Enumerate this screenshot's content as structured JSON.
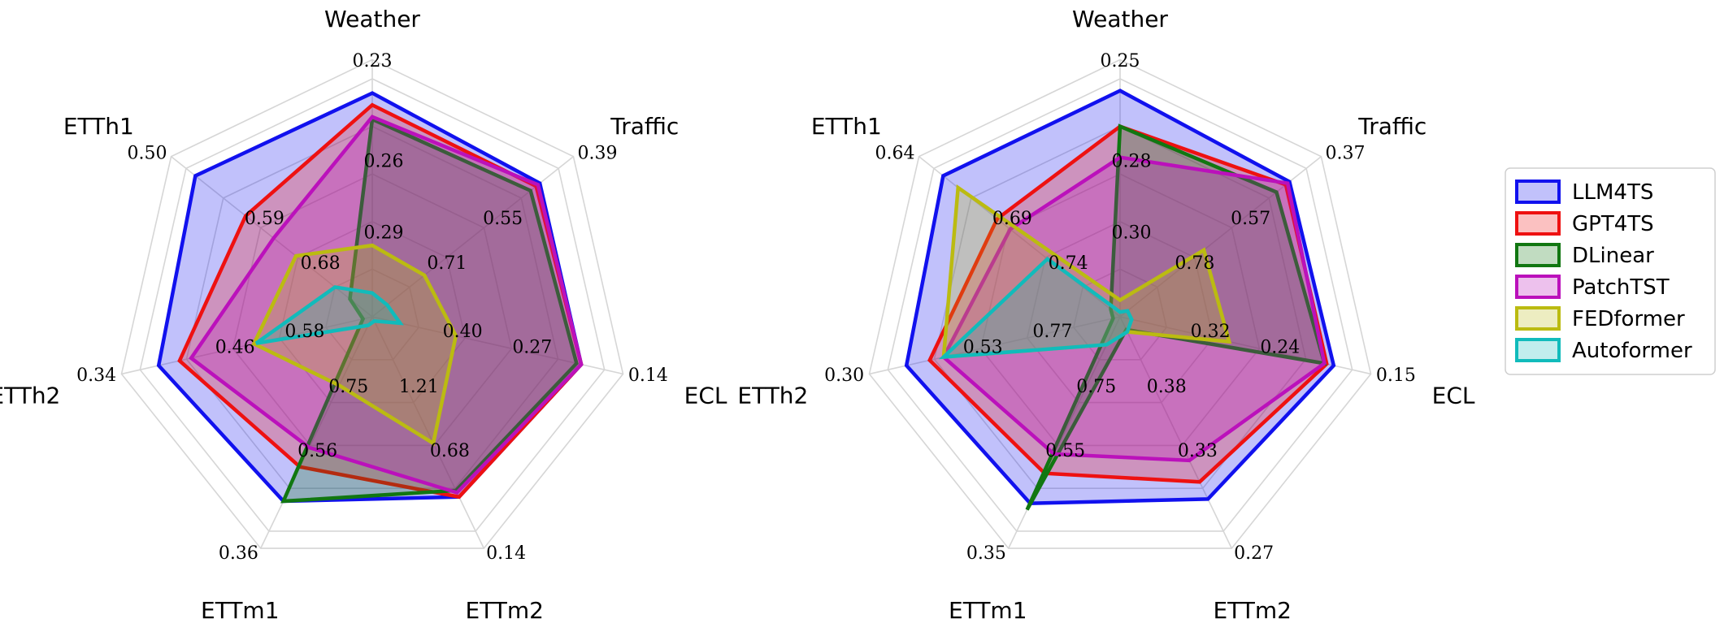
{
  "colors": {
    "LLM4TS": "#1111ee",
    "GPT4TS": "#ee1111",
    "DLinear": "#117711",
    "PatchTST": "#bb11bb",
    "FEDformer": "#bbbb11",
    "Autoformer": "#11bbbb",
    "grid": "#d6d6d6"
  },
  "legend": {
    "items": [
      "LLM4TS",
      "GPT4TS",
      "DLinear",
      "PatchTST",
      "FEDformer",
      "Autoformer"
    ]
  },
  "chart_data": [
    {
      "type": "radar",
      "axes": [
        "Weather",
        "Traffic",
        "ECL",
        "ETTm2",
        "ETTm1",
        "ETTh2",
        "ETTh1"
      ],
      "tick_labels": {
        "Weather": [
          "0.23",
          "0.26",
          "0.29"
        ],
        "Traffic": [
          "0.39",
          "0.55",
          "0.71"
        ],
        "ECL": [
          "0.14",
          "0.27",
          "0.40"
        ],
        "ETTm2": [
          "0.14",
          "0.68",
          "1.21"
        ],
        "ETTm1": [
          "0.36",
          "0.56",
          "0.75"
        ],
        "ETTh2": [
          "0.34",
          "0.46",
          "0.58"
        ],
        "ETTh1": [
          "0.50",
          "0.59",
          "0.68"
        ]
      },
      "series": [
        {
          "name": "LLM4TS",
          "values": [
            0.94,
            0.9,
            0.9,
            0.84,
            0.86,
            0.92,
            0.95
          ]
        },
        {
          "name": "GPT4TS",
          "values": [
            0.89,
            0.88,
            0.9,
            0.84,
            0.7,
            0.83,
            0.68
          ]
        },
        {
          "name": "DLinear",
          "values": [
            0.83,
            0.85,
            0.88,
            0.81,
            0.86,
            0.04,
            0.12
          ]
        },
        {
          "name": "PatchTST",
          "values": [
            0.84,
            0.89,
            0.9,
            0.82,
            0.61,
            0.78,
            0.53
          ]
        },
        {
          "name": "FEDformer",
          "values": [
            0.3,
            0.28,
            0.36,
            0.59,
            0.32,
            0.51,
            0.41
          ]
        },
        {
          "name": "Autoformer",
          "values": [
            0.1,
            0.08,
            0.12,
            0.02,
            0.04,
            0.5,
            0.2
          ]
        }
      ]
    },
    {
      "type": "radar",
      "axes": [
        "Weather",
        "Traffic",
        "ECL",
        "ETTm2",
        "ETTm1",
        "ETTh2",
        "ETTh1"
      ],
      "tick_labels": {
        "Weather": [
          "0.25",
          "0.28",
          "0.30"
        ],
        "Traffic": [
          "0.37",
          "0.57",
          "0.78"
        ],
        "ECL": [
          "0.15",
          "0.24",
          "0.32"
        ],
        "ETTm2": [
          "0.27",
          "0.33",
          "0.38"
        ],
        "ETTm1": [
          "0.35",
          "0.55",
          "0.75"
        ],
        "ETTh2": [
          "0.30",
          "0.53",
          "0.77"
        ],
        "ETTh1": [
          "0.64",
          "0.69",
          "0.74"
        ]
      },
      "series": [
        {
          "name": "LLM4TS",
          "values": [
            0.95,
            0.91,
            0.92,
            0.85,
            0.87,
            0.92,
            0.95
          ]
        },
        {
          "name": "GPT4TS",
          "values": [
            0.8,
            0.89,
            0.89,
            0.77,
            0.73,
            0.82,
            0.66
          ]
        },
        {
          "name": "DLinear",
          "values": [
            0.8,
            0.84,
            0.88,
            0.06,
            0.9,
            0.03,
            0.05
          ]
        },
        {
          "name": "PatchTST",
          "values": [
            0.67,
            0.9,
            0.88,
            0.67,
            0.64,
            0.76,
            0.59
          ]
        },
        {
          "name": "FEDformer",
          "values": [
            0.07,
            0.45,
            0.47,
            0.07,
            0.13,
            0.76,
            0.87
          ]
        },
        {
          "name": "Autoformer",
          "values": [
            0.02,
            0.04,
            0.05,
            0.07,
            0.13,
            0.76,
            0.39
          ]
        }
      ]
    }
  ]
}
